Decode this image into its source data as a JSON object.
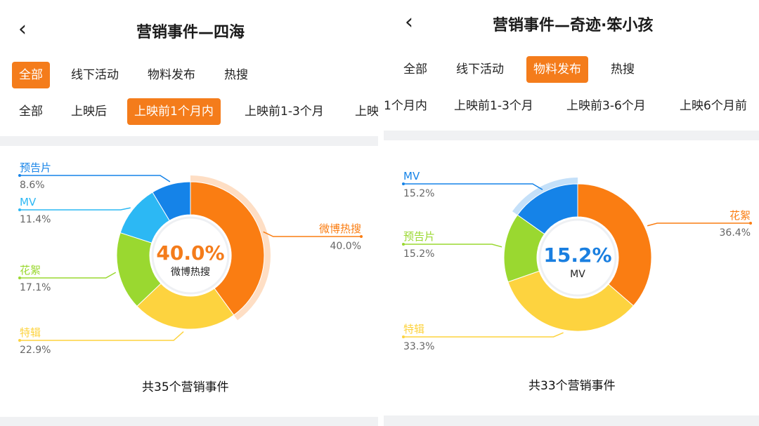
{
  "colors": {
    "accent": "#f47c1b",
    "orange": "#fa7d12",
    "yellow": "#fdd33f",
    "green": "#9ad830",
    "cyan": "#2cb8f4",
    "blue": "#1583e8",
    "teal": "#1aa0e8",
    "band": "#f0f1f3"
  },
  "panels": [
    {
      "back_icon": "chevron-left-icon",
      "title": "营销事件—四海",
      "category_tabs": [
        "全部",
        "线下活动",
        "物料发布",
        "热搜"
      ],
      "category_active": 0,
      "period_tabs": [
        "全部",
        "上映后",
        "上映前1个月内",
        "上映前1-3个月",
        "上映"
      ],
      "period_active": 2,
      "center_value": "40.0%",
      "center_label": "微博热搜",
      "total_text": "共35个营销事件",
      "chart_data": {
        "type": "donut",
        "slices": [
          {
            "label": "微博热搜",
            "value": 40.0,
            "display": "40.0%",
            "color": "#fa7d12",
            "highlighted": true
          },
          {
            "label": "特辑",
            "value": 22.9,
            "display": "22.9%",
            "color": "#fdd33f"
          },
          {
            "label": "花絮",
            "value": 17.1,
            "display": "17.1%",
            "color": "#9ad830"
          },
          {
            "label": "MV",
            "value": 11.4,
            "display": "11.4%",
            "color": "#2cb8f4"
          },
          {
            "label": "预告片",
            "value": 8.6,
            "display": "8.6%",
            "color": "#1583e8"
          }
        ]
      }
    },
    {
      "back_icon": "chevron-left-icon",
      "title": "营销事件—奇迹·笨小孩",
      "category_tabs": [
        "全部",
        "线下活动",
        "物料发布",
        "热搜"
      ],
      "category_active": 2,
      "period_tabs": [
        "1个月内",
        "上映前1-3个月",
        "上映前3-6个月",
        "上映6个月前"
      ],
      "period_active": -1,
      "center_value": "15.2%",
      "center_label": "MV",
      "total_text": "共33个营销事件",
      "chart_data": {
        "type": "donut",
        "slices": [
          {
            "label": "花絮",
            "value": 36.4,
            "display": "36.4%",
            "color": "#fa7d12"
          },
          {
            "label": "特辑",
            "value": 33.3,
            "display": "33.3%",
            "color": "#fdd33f"
          },
          {
            "label": "预告片",
            "value": 15.2,
            "display": "15.2%",
            "color": "#9ad830"
          },
          {
            "label": "MV",
            "value": 15.2,
            "display": "15.2%",
            "color": "#1583e8",
            "highlighted": true
          }
        ]
      }
    }
  ]
}
